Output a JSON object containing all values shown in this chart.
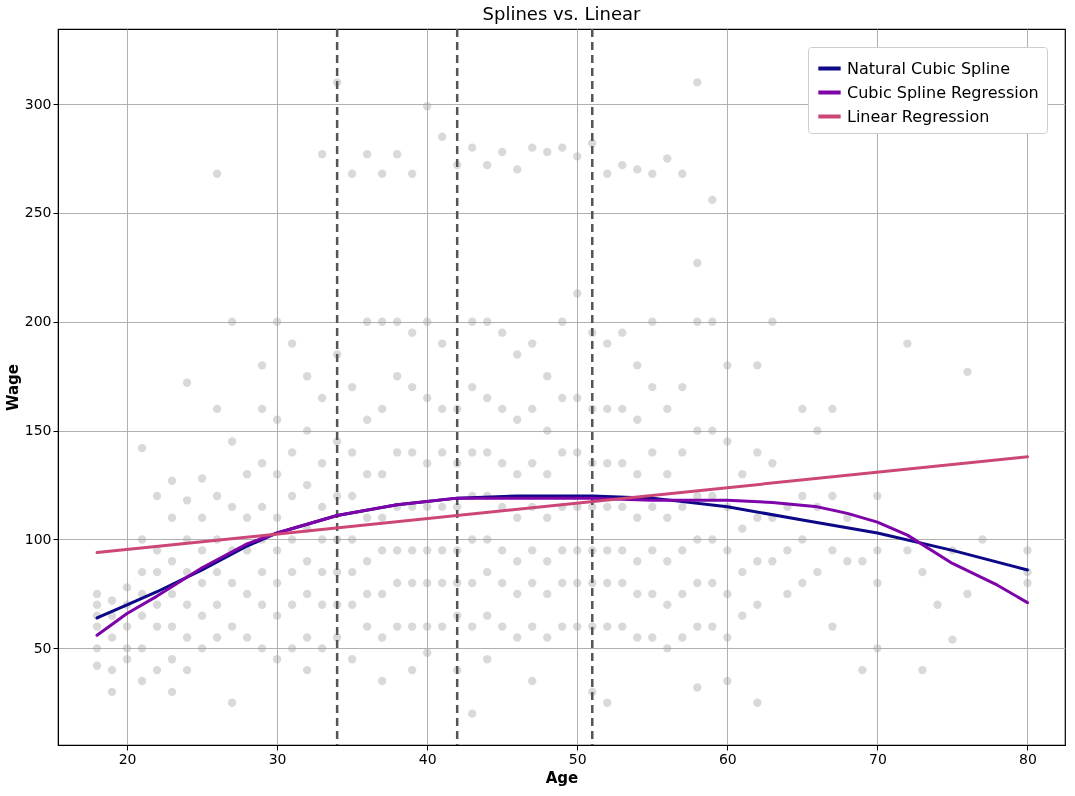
{
  "chart_data": {
    "type": "line",
    "title": "Splines vs. Linear",
    "xlabel": "Age",
    "ylabel": "Wage",
    "xlim": [
      15.4,
      82.5
    ],
    "ylim": [
      5.6,
      334.5
    ],
    "xticks": [
      20,
      30,
      40,
      50,
      60,
      70,
      80
    ],
    "yticks": [
      50,
      100,
      150,
      200,
      250,
      300
    ],
    "grid": true,
    "legend": "top right",
    "ref_lines": [
      {
        "axis": "x",
        "value": 34,
        "color": "#555555",
        "line_style": "dashed"
      },
      {
        "axis": "x",
        "value": 42,
        "color": "#555555",
        "line_style": "dashed"
      },
      {
        "axis": "x",
        "value": 51,
        "color": "#555555",
        "line_style": "dashed"
      }
    ],
    "series": [
      {
        "type": "scatter",
        "color": "#a0a0a0",
        "x": [
          18,
          18,
          18,
          18,
          18,
          18,
          19,
          19,
          19,
          19,
          19,
          20,
          20,
          20,
          20,
          20,
          21,
          21,
          21,
          21,
          21,
          21,
          21,
          22,
          22,
          22,
          22,
          22,
          22,
          23,
          23,
          23,
          23,
          23,
          23,
          23,
          24,
          24,
          24,
          24,
          24,
          24,
          24,
          25,
          25,
          25,
          25,
          25,
          25,
          26,
          26,
          26,
          26,
          26,
          26,
          26,
          27,
          27,
          27,
          27,
          27,
          27,
          27,
          28,
          28,
          28,
          28,
          28,
          29,
          29,
          29,
          29,
          29,
          29,
          29,
          29,
          30,
          30,
          30,
          30,
          30,
          30,
          30,
          30,
          31,
          31,
          31,
          31,
          31,
          31,
          31,
          32,
          32,
          32,
          32,
          32,
          32,
          32,
          32,
          33,
          33,
          33,
          33,
          33,
          33,
          33,
          33,
          34,
          34,
          34,
          34,
          34,
          34,
          34,
          34,
          35,
          35,
          35,
          35,
          35,
          35,
          35,
          35,
          36,
          36,
          36,
          36,
          36,
          36,
          36,
          36,
          37,
          37,
          37,
          37,
          37,
          37,
          37,
          37,
          37,
          38,
          38,
          38,
          38,
          38,
          38,
          38,
          38,
          39,
          39,
          39,
          39,
          39,
          39,
          39,
          39,
          39,
          40,
          40,
          40,
          40,
          40,
          40,
          40,
          40,
          40,
          41,
          41,
          41,
          41,
          41,
          41,
          41,
          41,
          42,
          42,
          42,
          42,
          42,
          42,
          42,
          42,
          43,
          43,
          43,
          43,
          43,
          43,
          43,
          43,
          43,
          44,
          44,
          44,
          44,
          44,
          44,
          44,
          44,
          44,
          45,
          45,
          45,
          45,
          45,
          45,
          45,
          45,
          46,
          46,
          46,
          46,
          46,
          46,
          46,
          46,
          47,
          47,
          47,
          47,
          47,
          47,
          47,
          47,
          47,
          48,
          48,
          48,
          48,
          48,
          48,
          48,
          48,
          49,
          49,
          49,
          49,
          49,
          49,
          49,
          49,
          50,
          50,
          50,
          50,
          50,
          50,
          50,
          50,
          51,
          51,
          51,
          51,
          51,
          51,
          51,
          51,
          51,
          52,
          52,
          52,
          52,
          52,
          52,
          52,
          52,
          52,
          53,
          53,
          53,
          53,
          53,
          53,
          53,
          53,
          54,
          54,
          54,
          54,
          54,
          54,
          54,
          54,
          55,
          55,
          55,
          55,
          55,
          55,
          55,
          55,
          56,
          56,
          56,
          56,
          56,
          56,
          56,
          57,
          57,
          57,
          57,
          57,
          57,
          57,
          58,
          58,
          58,
          58,
          58,
          58,
          58,
          58,
          58,
          59,
          59,
          59,
          59,
          59,
          59,
          59,
          60,
          60,
          60,
          60,
          60,
          60,
          60,
          61,
          61,
          61,
          61,
          62,
          62,
          62,
          62,
          62,
          62,
          63,
          63,
          63,
          63,
          64,
          64,
          64,
          65,
          65,
          65,
          65,
          66,
          66,
          66,
          67,
          67,
          67,
          67,
          68,
          68,
          69,
          69,
          70,
          70,
          70,
          70,
          72,
          72,
          73,
          73,
          74,
          75,
          75,
          76,
          76,
          77,
          80,
          80,
          80
        ],
        "values": [
          70,
          75,
          65,
          60,
          50,
          42,
          72,
          65,
          55,
          40,
          30,
          78,
          70,
          60,
          50,
          45,
          142,
          100,
          85,
          75,
          65,
          50,
          35,
          120,
          95,
          85,
          70,
          60,
          40,
          127,
          110,
          90,
          75,
          60,
          45,
          30,
          172,
          118,
          100,
          85,
          70,
          55,
          40,
          128,
          110,
          95,
          80,
          65,
          50,
          268,
          160,
          120,
          100,
          85,
          70,
          55,
          200,
          145,
          115,
          95,
          80,
          60,
          25,
          130,
          110,
          95,
          75,
          55,
          180,
          160,
          135,
          115,
          100,
          85,
          70,
          50,
          200,
          155,
          130,
          110,
          95,
          80,
          65,
          45,
          190,
          140,
          120,
          100,
          85,
          70,
          50,
          175,
          150,
          125,
          105,
          90,
          75,
          55,
          40,
          277,
          165,
          135,
          115,
          100,
          85,
          70,
          50,
          310,
          185,
          145,
          120,
          100,
          85,
          70,
          55,
          268,
          170,
          140,
          120,
          100,
          85,
          70,
          45,
          277,
          200,
          155,
          130,
          110,
          90,
          75,
          60,
          268,
          200,
          160,
          130,
          110,
          95,
          75,
          55,
          35,
          277,
          200,
          175,
          140,
          115,
          95,
          80,
          60,
          268,
          195,
          170,
          140,
          115,
          95,
          80,
          60,
          40,
          299,
          200,
          165,
          135,
          115,
          95,
          80,
          60,
          48,
          285,
          190,
          160,
          140,
          115,
          95,
          80,
          60,
          272,
          160,
          135,
          115,
          95,
          80,
          65,
          40,
          280,
          200,
          170,
          140,
          120,
          100,
          80,
          60,
          20,
          272,
          200,
          165,
          140,
          120,
          100,
          85,
          65,
          45,
          278,
          195,
          160,
          135,
          115,
          95,
          80,
          60,
          270,
          185,
          155,
          130,
          110,
          90,
          75,
          55,
          280,
          190,
          160,
          135,
          115,
          95,
          80,
          60,
          35,
          278,
          175,
          150,
          130,
          110,
          90,
          75,
          55,
          280,
          200,
          165,
          140,
          115,
          95,
          80,
          60,
          276,
          213,
          165,
          140,
          115,
          95,
          80,
          60,
          282,
          195,
          160,
          135,
          115,
          95,
          80,
          60,
          30,
          268,
          190,
          160,
          135,
          115,
          95,
          80,
          60,
          25,
          272,
          195,
          160,
          135,
          115,
          95,
          80,
          60,
          270,
          180,
          155,
          130,
          110,
          90,
          75,
          55,
          268,
          200,
          170,
          140,
          115,
          95,
          75,
          55,
          275,
          160,
          130,
          110,
          90,
          70,
          50,
          268,
          170,
          140,
          115,
          95,
          75,
          55,
          310,
          227,
          200,
          150,
          120,
          100,
          80,
          60,
          32,
          256,
          200,
          150,
          120,
          100,
          80,
          60,
          180,
          145,
          115,
          95,
          75,
          55,
          35,
          130,
          105,
          85,
          65,
          180,
          140,
          110,
          90,
          70,
          25,
          200,
          135,
          110,
          90,
          115,
          95,
          75,
          160,
          120,
          100,
          80,
          150,
          115,
          85,
          160,
          120,
          95,
          60,
          110,
          90,
          90,
          40,
          120,
          95,
          80,
          50,
          190,
          95,
          85,
          40,
          70,
          95,
          54,
          177,
          75,
          100,
          95,
          85,
          80
        ]
      },
      {
        "name": "Natural Cubic Spline",
        "color": "#0d0887",
        "x": [
          18,
          20,
          22,
          25,
          28,
          30,
          34,
          38,
          42,
          46,
          51,
          55,
          60,
          65,
          70,
          75,
          80
        ],
        "values": [
          64,
          70,
          76,
          86,
          97,
          103,
          111,
          116,
          119,
          120,
          120,
          119,
          115,
          109,
          103,
          95,
          86
        ]
      },
      {
        "name": "Cubic Spline Regression",
        "color": "#7e03a8",
        "x": [
          18,
          20,
          22,
          25,
          28,
          30,
          34,
          38,
          42,
          46,
          51,
          55,
          60,
          63,
          66,
          68,
          70,
          72,
          75,
          78,
          80
        ],
        "values": [
          56,
          66,
          74,
          87,
          98,
          103,
          111,
          116,
          119,
          119,
          119,
          118,
          118,
          117,
          115,
          112,
          108,
          102,
          89,
          79,
          71
        ]
      },
      {
        "name": "Linear Regression",
        "color": "#cc4778",
        "x": [
          18,
          80
        ],
        "values": [
          94,
          138
        ]
      }
    ]
  }
}
